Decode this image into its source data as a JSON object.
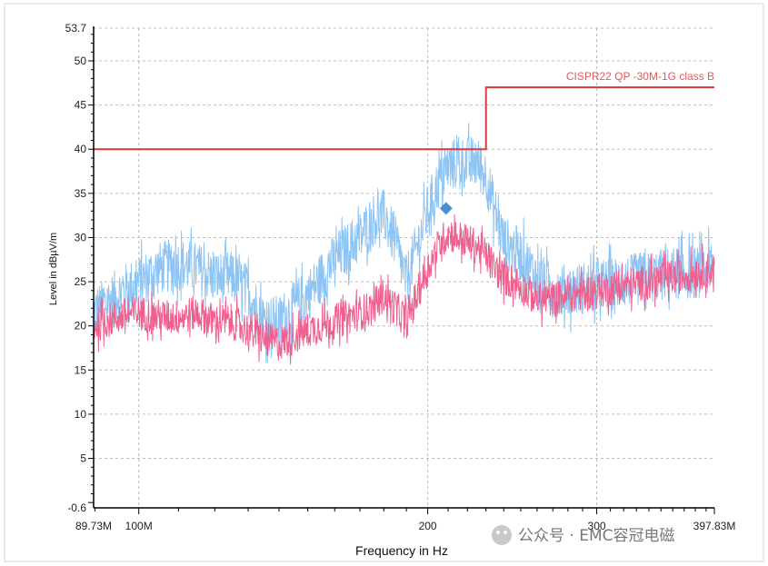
{
  "chart_data": {
    "type": "line",
    "title": "",
    "xlabel": "Frequency in Hz",
    "ylabel": "Level in dBµV/m",
    "xscale": "log",
    "xlim": [
      89.73,
      397.83
    ],
    "ylim": [
      -0.6,
      53.7
    ],
    "x_ticks": [
      {
        "value": 89.73,
        "label": "89.73M"
      },
      {
        "value": 100,
        "label": "100M"
      },
      {
        "value": 200,
        "label": "200"
      },
      {
        "value": 300,
        "label": "300"
      },
      {
        "value": 397.83,
        "label": "397.83M"
      }
    ],
    "y_ticks": [
      {
        "value": -0.6,
        "label": "-0.6"
      },
      {
        "value": 5,
        "label": "5"
      },
      {
        "value": 10,
        "label": "10"
      },
      {
        "value": 15,
        "label": "15"
      },
      {
        "value": 20,
        "label": "20"
      },
      {
        "value": 25,
        "label": "25"
      },
      {
        "value": 30,
        "label": "30"
      },
      {
        "value": 35,
        "label": "35"
      },
      {
        "value": 40,
        "label": "40"
      },
      {
        "value": 45,
        "label": "45"
      },
      {
        "value": 50,
        "label": "50"
      },
      {
        "value": 53.7,
        "label": "53.7"
      }
    ],
    "grid": true,
    "limit_line": {
      "name": "CISPR22 QP -30M-1G class B",
      "color": "#d93a3a",
      "points": [
        [
          89.73,
          40
        ],
        [
          230,
          40
        ],
        [
          230,
          47
        ],
        [
          397.83,
          47
        ]
      ]
    },
    "series": [
      {
        "color": "#8ec4f4",
        "noise": 3.0,
        "x": [
          89.73,
          95,
          100,
          105,
          110,
          115,
          120,
          125,
          130,
          135,
          140,
          150,
          160,
          170,
          175,
          180,
          185,
          190,
          195,
          200,
          205,
          210,
          215,
          220,
          225,
          230,
          235,
          240,
          250,
          260,
          270,
          280,
          300,
          320,
          340,
          360,
          380,
          397.83
        ],
        "values": [
          21.5,
          23.5,
          25.0,
          26.5,
          27.0,
          26.5,
          25.5,
          25.5,
          24.0,
          20.5,
          20.5,
          23.5,
          27.5,
          30.0,
          32.0,
          32.5,
          29.5,
          25.0,
          29.0,
          33.0,
          36.0,
          38.0,
          38.5,
          38.5,
          38.5,
          37.0,
          33.0,
          29.5,
          28.0,
          25.5,
          24.0,
          24.0,
          24.5,
          25.0,
          25.5,
          26.0,
          26.0,
          26.5
        ]
      },
      {
        "color": "#f0608e",
        "noise": 2.0,
        "x": [
          89.73,
          95,
          100,
          105,
          110,
          115,
          120,
          125,
          130,
          135,
          140,
          150,
          160,
          170,
          175,
          180,
          185,
          190,
          195,
          200,
          205,
          210,
          215,
          220,
          225,
          230,
          235,
          240,
          250,
          260,
          270,
          280,
          300,
          320,
          340,
          360,
          380,
          397.83
        ],
        "values": [
          20.0,
          21.0,
          21.5,
          21.0,
          21.0,
          21.5,
          20.5,
          20.5,
          19.5,
          18.5,
          18.0,
          19.5,
          20.5,
          21.5,
          22.0,
          23.5,
          22.0,
          20.5,
          23.5,
          26.5,
          29.0,
          30.5,
          30.0,
          29.5,
          29.0,
          28.0,
          26.5,
          25.5,
          24.5,
          23.0,
          23.0,
          23.5,
          24.0,
          24.5,
          25.0,
          25.5,
          26.0,
          26.5
        ]
      }
    ],
    "markers": [
      {
        "x": 209,
        "y": 33.3,
        "color": "#4a8fd4",
        "shape": "diamond"
      }
    ]
  },
  "watermark": {
    "text": "公众号 · EMC容冠电磁"
  }
}
